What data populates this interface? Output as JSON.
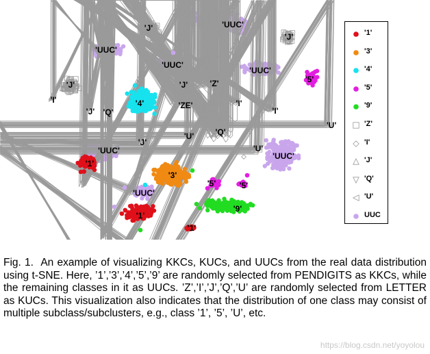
{
  "chart_data": {
    "type": "scatter",
    "title": "",
    "xlabel": "",
    "ylabel": "",
    "legend_position": "right",
    "series": [
      {
        "name": "'1'",
        "color": "#e0101a",
        "marker": "filled-circle"
      },
      {
        "name": "'3'",
        "color": "#f08a12",
        "marker": "filled-circle"
      },
      {
        "name": "'4'",
        "color": "#17e2ee",
        "marker": "filled-circle"
      },
      {
        "name": "'5'",
        "color": "#e31ee0",
        "marker": "filled-circle"
      },
      {
        "name": "'9'",
        "color": "#22dc22",
        "marker": "filled-circle"
      },
      {
        "name": "'Z'",
        "color": "#9a9a9a",
        "marker": "square"
      },
      {
        "name": "'I'",
        "color": "#9a9a9a",
        "marker": "diamond"
      },
      {
        "name": "'J'",
        "color": "#9a9a9a",
        "marker": "triangle-up"
      },
      {
        "name": "'Q'",
        "color": "#9a9a9a",
        "marker": "triangle-down"
      },
      {
        "name": "'U'",
        "color": "#9a9a9a",
        "marker": "triangle-left"
      },
      {
        "name": "UUC",
        "color": "#c9a6ec",
        "marker": "filled-circle"
      }
    ],
    "cluster_labels": [
      "'J'",
      "'UUC'",
      "'J'",
      "'UUC'",
      "'UUC'",
      "'UUC'",
      "'5'",
      "'J'",
      "'I'",
      "'J'",
      "'Z'",
      "'4'",
      "'ZE'",
      "'I'",
      "'J'",
      "'Q'",
      "'I'",
      "'U'",
      "'Q'",
      "'J'",
      "'U'",
      "'U'",
      "'UUC'",
      "'UUC'",
      "'1'",
      "'3'",
      "'5'",
      "'5'",
      "'UUC'",
      "'1'",
      "'9'",
      "'1'"
    ]
  },
  "caption": {
    "label": "Fig. 1.",
    "text": "An example of visualizing KKCs, KUCs, and UUCs from the real data distribution using t-SNE. Here, ’1’,’3’,’4’,’5’,’9’ are randomly selected from PENDIGITS as KKCs, while the remaining classes in it as UUCs. ’Z’,’I’,’J’,’Q’,’U’ are randomly selected from LETTER as KUCs. This visualization also indicates that the distribution of one class may consist of multiple subclass/subclusters, e.g., class ’1’, ’5’, ’U’, etc."
  },
  "watermark": "https://blog.csdn.net/yoyolou"
}
